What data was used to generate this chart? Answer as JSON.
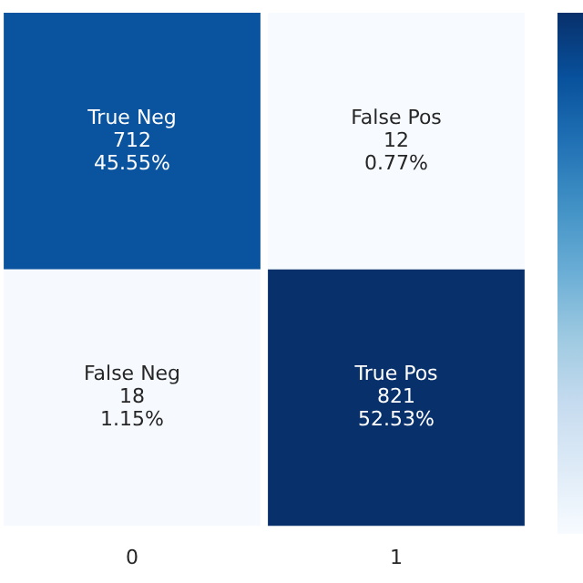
{
  "chart_data": {
    "type": "heatmap",
    "categories": [
      "0",
      "1"
    ],
    "y_categories": [
      null,
      null
    ],
    "cells": [
      [
        712,
        12
      ],
      [
        18,
        821
      ]
    ],
    "data_labels": true,
    "annotations": [
      "True Neg",
      "45.55%",
      "False Pos",
      "0.77%",
      "False Neg",
      "1.15%",
      "True Pos",
      "52.53%"
    ],
    "tick_labels": "x"
  }
}
